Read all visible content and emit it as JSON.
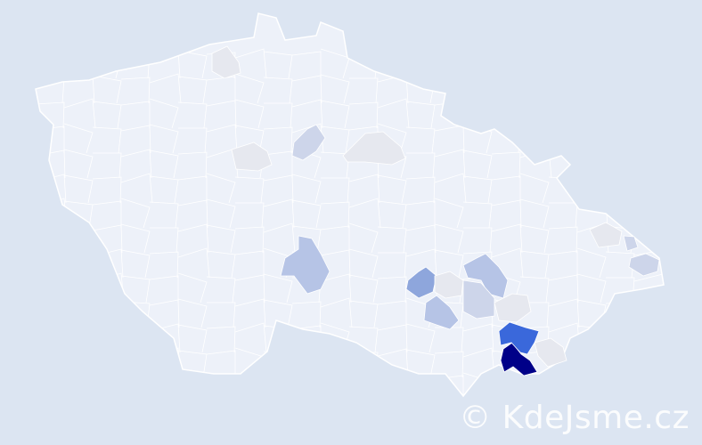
{
  "map": {
    "colors": {
      "background": "#dce5f2",
      "base": "#edf1f9",
      "border": "#ffffff",
      "level_1": "#e6e8ef",
      "level_2": "#cdd5ea",
      "level_3": "#b6c4e6",
      "level_4": "#8ea6dc",
      "level_5": "#3a68db",
      "level_6": "#000088"
    }
  },
  "watermark": "© KdeJsme.cz"
}
